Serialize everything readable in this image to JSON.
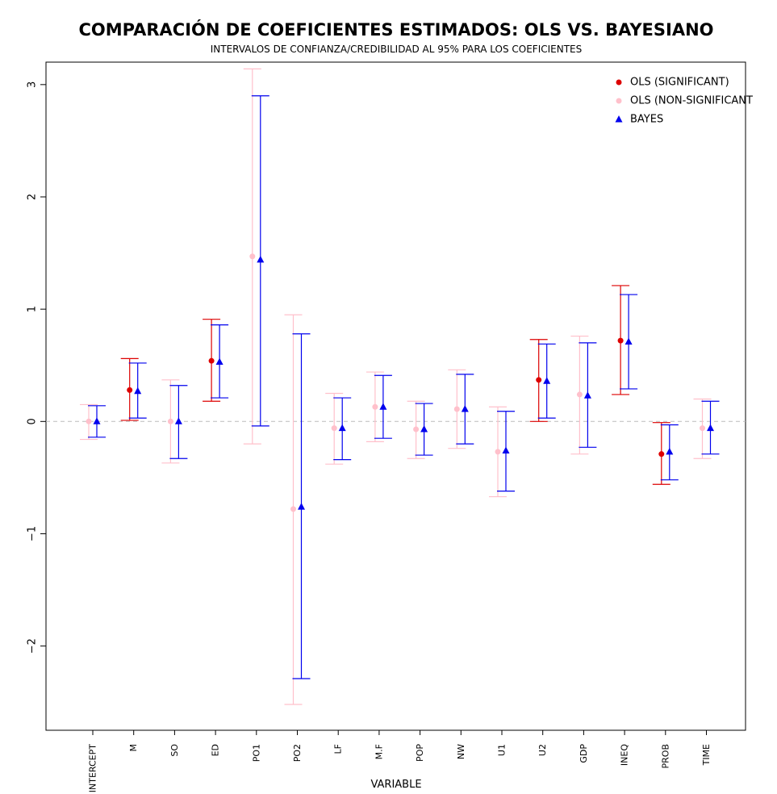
{
  "chart_data": {
    "type": "errorbar",
    "title": "COMPARACIÓN DE COEFICIENTES ESTIMADOS: OLS VS. BAYESIANO",
    "subtitle": "INTERVALOS DE CONFIANZA/CREDIBILIDAD AL 95% PARA LOS COEFICIENTES",
    "xlabel": "VARIABLE",
    "ylabel": "",
    "ylim": [
      -2.75,
      3.2
    ],
    "yticks": [
      -2,
      -1,
      0,
      1,
      2,
      3
    ],
    "reference_line": 0,
    "categories": [
      "INTERCEPT",
      "M",
      "SO",
      "ED",
      "PO1",
      "PO2",
      "LF",
      "M.F",
      "POP",
      "NW",
      "U1",
      "U2",
      "GDP",
      "INEQ",
      "PROB",
      "TIME"
    ],
    "colors": {
      "ols_significant": "#dd0000",
      "ols_non_significant": "#ffc0cb",
      "bayes": "#0000ee",
      "reference_line": "#bbbbbb"
    },
    "legend": {
      "position": "top-right",
      "entries": [
        {
          "label": "OLS (SIGNIFICANT)",
          "marker": "circle",
          "color": "#dd0000"
        },
        {
          "label": "OLS (NON-SIGNIFICANT",
          "marker": "circle",
          "color": "#ffc0cb"
        },
        {
          "label": "BAYES",
          "marker": "triangle",
          "color": "#0000ee"
        }
      ]
    },
    "series": [
      {
        "name": "OLS",
        "estimate": [
          0.0,
          0.28,
          0.0,
          0.54,
          1.47,
          -0.78,
          -0.06,
          0.13,
          -0.07,
          0.11,
          -0.27,
          0.37,
          0.24,
          0.72,
          -0.29,
          -0.06
        ],
        "lower": [
          -0.16,
          0.01,
          -0.37,
          0.18,
          -0.2,
          -2.52,
          -0.38,
          -0.18,
          -0.33,
          -0.24,
          -0.67,
          0.0,
          -0.29,
          0.24,
          -0.56,
          -0.33
        ],
        "upper": [
          0.15,
          0.56,
          0.37,
          0.91,
          3.14,
          0.95,
          0.25,
          0.44,
          0.18,
          0.46,
          0.13,
          0.73,
          0.76,
          1.21,
          -0.01,
          0.2
        ],
        "significant": [
          false,
          true,
          false,
          true,
          false,
          false,
          false,
          false,
          false,
          false,
          false,
          true,
          false,
          true,
          true,
          false
        ]
      },
      {
        "name": "BAYES",
        "estimate": [
          0.0,
          0.27,
          0.0,
          0.53,
          1.44,
          -0.76,
          -0.06,
          0.13,
          -0.07,
          0.11,
          -0.26,
          0.36,
          0.23,
          0.71,
          -0.27,
          -0.06
        ],
        "lower": [
          -0.14,
          0.03,
          -0.33,
          0.21,
          -0.04,
          -2.29,
          -0.34,
          -0.15,
          -0.3,
          -0.2,
          -0.62,
          0.03,
          -0.23,
          0.29,
          -0.52,
          -0.29
        ],
        "upper": [
          0.14,
          0.52,
          0.32,
          0.86,
          2.9,
          0.78,
          0.21,
          0.41,
          0.16,
          0.42,
          0.09,
          0.69,
          0.7,
          1.13,
          -0.03,
          0.18
        ]
      }
    ]
  }
}
